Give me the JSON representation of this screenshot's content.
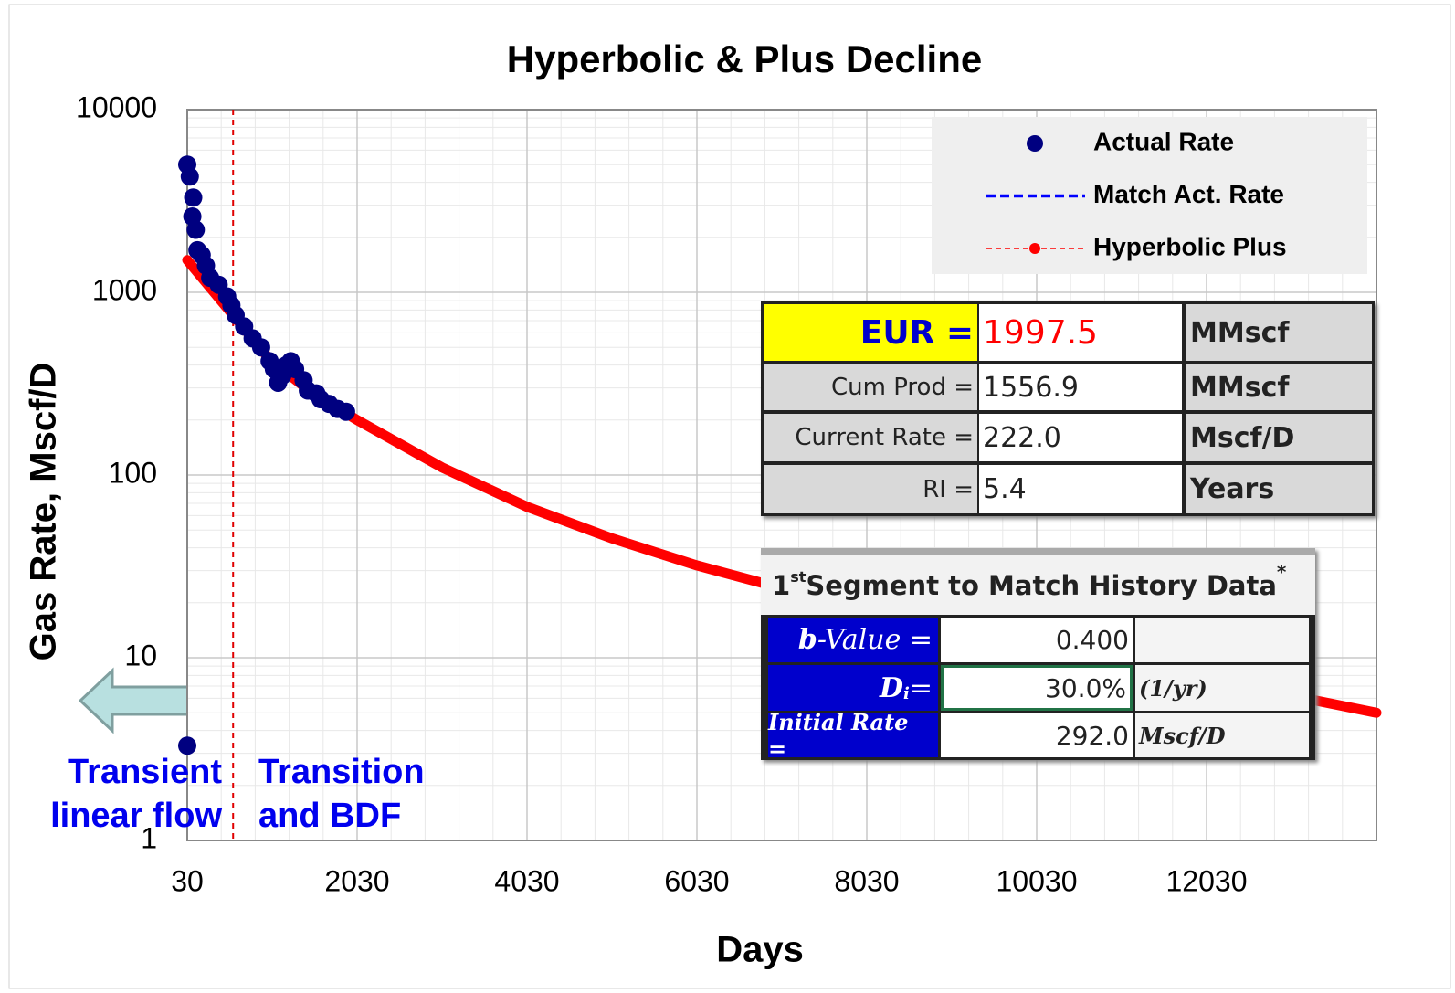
{
  "chart_data": {
    "type": "scatter",
    "title": "Hyperbolic & Plus Decline",
    "x_label": "Days",
    "y_label": "Gas Rate, Mscf/D",
    "xlim": [
      30,
      14030
    ],
    "xticks": [
      30,
      2030,
      4030,
      6030,
      8030,
      10030,
      12030
    ],
    "ylim": [
      1,
      10000
    ],
    "yticks": [
      1,
      10,
      100,
      1000,
      10000
    ],
    "log_y": true,
    "grid": true,
    "legend": "upper right",
    "vline": {
      "x": 570,
      "color": "#e00000"
    },
    "annotations": [
      "Transient",
      "linear flow",
      "Transition",
      "and BDF"
    ],
    "series": [
      {
        "name": "Actual Rate",
        "color": "#000080",
        "kind": "points",
        "x": [
          30,
          60,
          100,
          90,
          130,
          150,
          200,
          250,
          300,
          400,
          500,
          550,
          600,
          700,
          800,
          900,
          1000,
          1050,
          1100,
          1150,
          1200,
          1250,
          1300,
          1400,
          1450,
          1550,
          1600,
          1700,
          1800,
          1900,
          30
        ],
        "values": [
          5000,
          4300,
          3300,
          2600,
          2200,
          1700,
          1600,
          1400,
          1200,
          1100,
          950,
          850,
          750,
          650,
          560,
          500,
          420,
          380,
          320,
          350,
          400,
          420,
          380,
          330,
          290,
          280,
          260,
          245,
          230,
          222,
          3.3
        ]
      },
      {
        "name": "Match Act. Rate",
        "color": "#0000ff",
        "kind": "dashed",
        "x": [
          30,
          500,
          1000,
          1500,
          1900
        ],
        "values": [
          1500,
          820,
          430,
          282,
          222
        ]
      },
      {
        "name": "Hyperbolic Plus",
        "color": "#ff0000",
        "kind": "thick",
        "x": [
          30,
          500,
          1000,
          1500,
          2030,
          3030,
          4030,
          5030,
          6030,
          7030,
          8030,
          9030,
          10030,
          11030,
          12030,
          13030,
          14030
        ],
        "values": [
          1500,
          820,
          430,
          282,
          200,
          110,
          67,
          45,
          32,
          24,
          19,
          15,
          12,
          9.5,
          7.7,
          6.2,
          5.0
        ]
      }
    ]
  },
  "eur_table": {
    "rows": [
      [
        "EUR =",
        "1997.5",
        "MMscf"
      ],
      [
        "Cum Prod =",
        "1556.9",
        "MMscf"
      ],
      [
        "Current Rate =",
        "222.0",
        "Mscf/D"
      ],
      [
        "RI =",
        "5.4",
        "Years"
      ]
    ]
  },
  "segment_table": {
    "title": [
      "1",
      "st",
      " Segment to Match History Data",
      "*"
    ],
    "rows": [
      {
        "label": [
          "b",
          "-Value ="
        ],
        "value": "0.400",
        "unit": ""
      },
      {
        "label": [
          "D",
          "i",
          " ="
        ],
        "value": "30.0%",
        "unit": "(1/yr)"
      },
      {
        "label": [
          "Initial Rate ="
        ],
        "value": "292.0",
        "unit": "Mscf/D"
      }
    ]
  }
}
